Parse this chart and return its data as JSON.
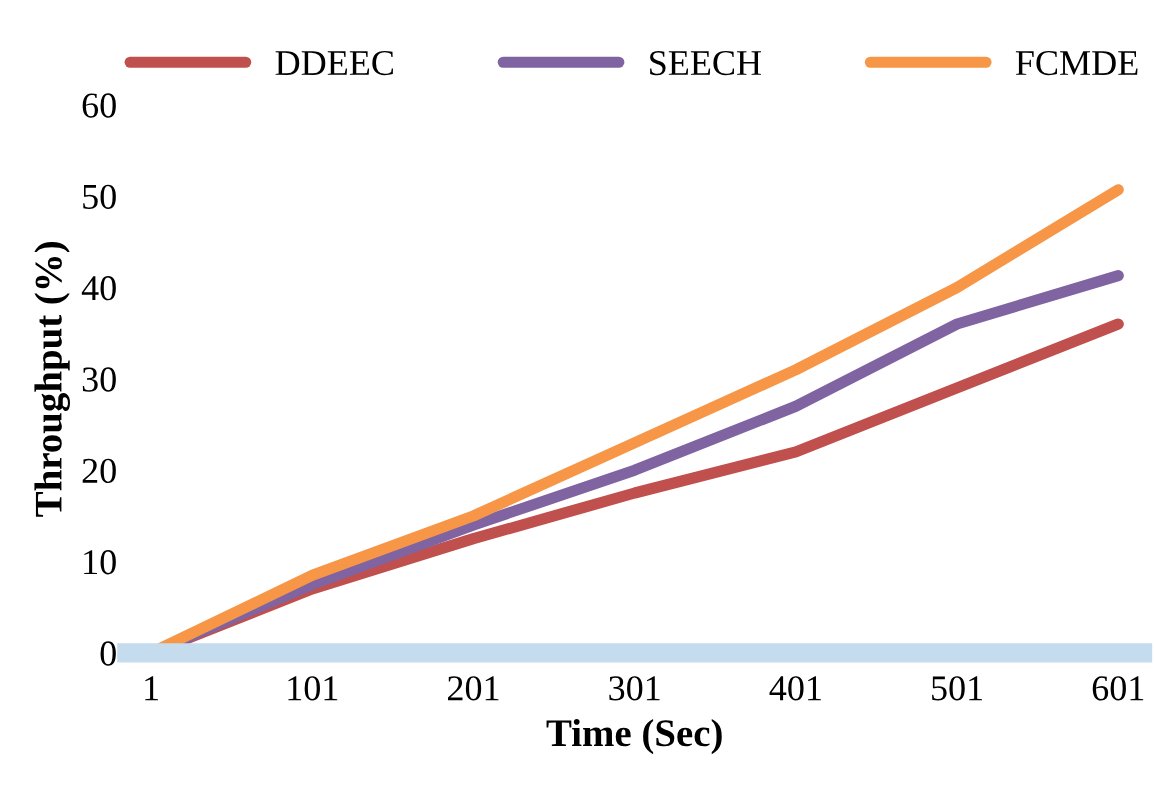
{
  "chart_data": {
    "type": "line",
    "xlabel": "Time (Sec)",
    "ylabel": "Throughput (%)",
    "categories": [
      "1",
      "101",
      "201",
      "301",
      "401",
      "501",
      "601"
    ],
    "series": [
      {
        "name": "DDEEC",
        "color": "#c0504d",
        "values": [
          0,
          7,
          12.5,
          17.5,
          22,
          29,
          36
        ]
      },
      {
        "name": "SEECH",
        "color": "#8064a2",
        "values": [
          0,
          7.5,
          14,
          20,
          27,
          36,
          41.3
        ]
      },
      {
        "name": "FCMDE",
        "color": "#f79646",
        "values": [
          0,
          8.5,
          15,
          23,
          31,
          40,
          50.7
        ]
      }
    ],
    "ylim": [
      0,
      60
    ],
    "yticks": [
      0,
      10,
      20,
      30,
      40,
      50,
      60
    ],
    "legend": "top",
    "marker": "none",
    "line_style": "solid"
  }
}
